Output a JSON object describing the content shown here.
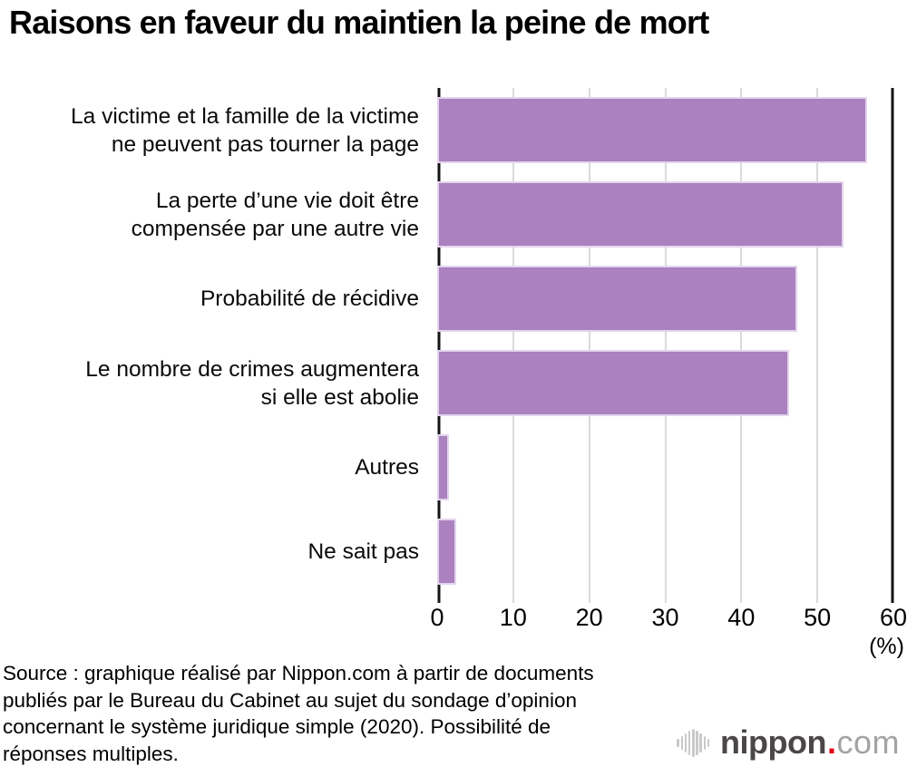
{
  "chart_data": {
    "type": "bar",
    "orientation": "horizontal",
    "title": "Raisons en faveur du maintien la peine de mort",
    "categories": [
      "La victime et la famille de la victime\nne peuvent pas tourner la page",
      "La perte d’une vie doit être\ncompensée par une autre vie",
      "Probabilité de récidive",
      "Le nombre de crimes augmentera\nsi elle est abolie",
      "Autres",
      "Ne sait pas"
    ],
    "values": [
      56.6,
      53.4,
      47.4,
      46.3,
      1.6,
      2.5
    ],
    "xlabel": "(%)",
    "xlim": [
      0,
      60
    ],
    "x_ticks": [
      0,
      10,
      20,
      30,
      40,
      50,
      60
    ],
    "grid": true,
    "legend": "none",
    "bar_color": "#ab81bf",
    "gridline_color": "#dadada",
    "axis_color": "#141414"
  },
  "source": "Source : graphique réalisé par Nippon.com à partir de documents\npubliés par le Bureau du Cabinet au sujet du sondage d’opinion\nconcernant le système juridique simple (2020). Possibilité de\nréponses multiples.",
  "logo": {
    "icon": "soundwave-bars-icon",
    "brand": "nippon",
    "dot": ".",
    "tld": "com",
    "brand_color": "#4b4746",
    "dot_color": "#e60012",
    "tld_color": "#a2a3a3"
  }
}
